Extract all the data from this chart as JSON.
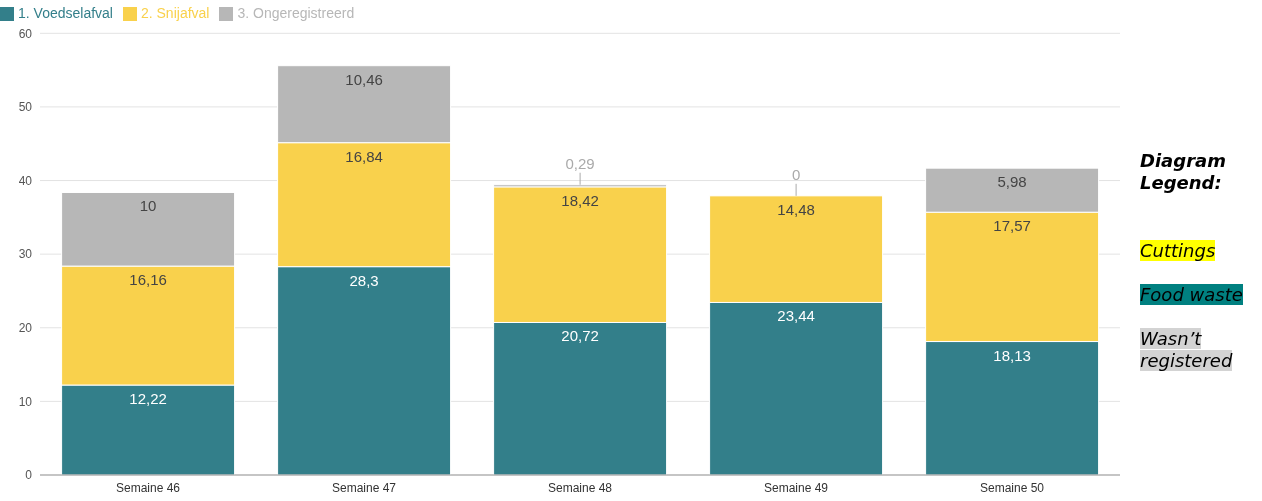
{
  "chart_data": {
    "type": "bar",
    "stacked": true,
    "categories": [
      "Semaine 46",
      "Semaine 47",
      "Semaine 48",
      "Semaine 49",
      "Semaine 50"
    ],
    "series": [
      {
        "name": "1. Voedselafval",
        "color": "#337f8a",
        "values": [
          12.22,
          28.3,
          20.72,
          23.44,
          18.13
        ],
        "value_labels": [
          "12,22",
          "28,3",
          "20,72",
          "23,44",
          "18,13"
        ]
      },
      {
        "name": "2. Snijafval",
        "color": "#f9d14c",
        "values": [
          16.16,
          16.84,
          18.42,
          14.48,
          17.57
        ],
        "value_labels": [
          "16,16",
          "16,84",
          "18,42",
          "14,48",
          "17,57"
        ]
      },
      {
        "name": "3. Ongeregistreerd",
        "color": "#b7b7b7",
        "values": [
          10,
          10.46,
          0.29,
          0,
          5.98
        ],
        "value_labels": [
          "10",
          "10,46",
          "0,29",
          "0",
          "5,98"
        ]
      }
    ],
    "ylim": [
      0,
      60
    ],
    "yticks": [
      0,
      10,
      20,
      30,
      40,
      50,
      60
    ],
    "grid": "y",
    "legend": "top left",
    "annotations": [
      "Diagram Legend:",
      "Cuttings",
      "Food waste",
      "Wasn’t registered"
    ]
  }
}
